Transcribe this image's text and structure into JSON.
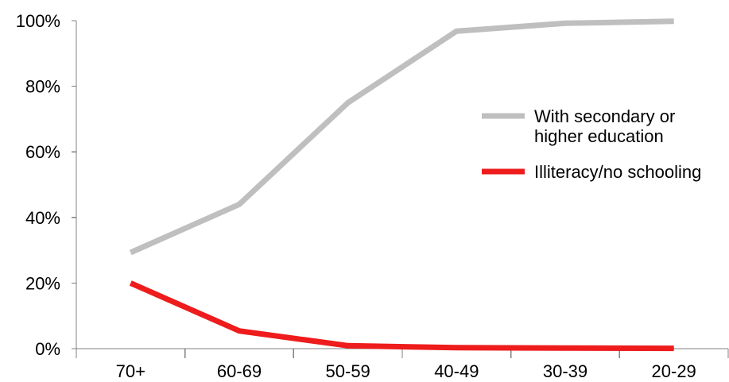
{
  "chart_data": {
    "type": "line",
    "title": "",
    "xlabel": "",
    "ylabel": "",
    "categories": [
      "70+",
      "60-69",
      "50-59",
      "40-49",
      "30-39",
      "20-29"
    ],
    "ylim": [
      0,
      100
    ],
    "y_ticks": [
      0,
      20,
      40,
      60,
      80,
      100
    ],
    "y_tick_labels": [
      "0%",
      "20%",
      "40%",
      "60%",
      "80%",
      "100%"
    ],
    "grid": false,
    "legend_position": "right",
    "series": [
      {
        "name": "With secondary or higher education",
        "name_lines": [
          "With secondary or",
          "higher education"
        ],
        "color": "#bfbfbf",
        "values": [
          29.3,
          44,
          75,
          96.8,
          99.2,
          99.8
        ]
      },
      {
        "name": "Illiteracy/no schooling",
        "name_lines": [
          "Illiteracy/no schooling"
        ],
        "color": "#ee1c1c",
        "values": [
          20,
          5.4,
          0.9,
          0.3,
          0.2,
          0.1
        ]
      }
    ]
  }
}
